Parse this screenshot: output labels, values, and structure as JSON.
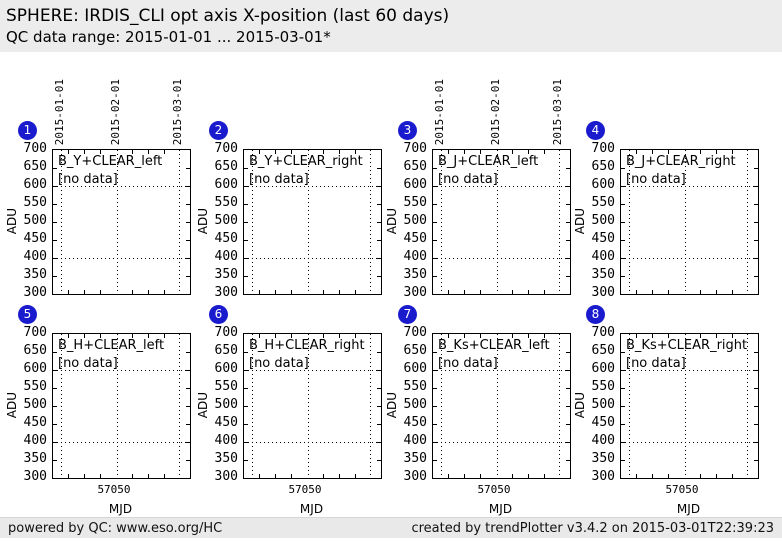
{
  "header": {
    "title": "SPHERE: IRDIS_CLI opt axis X-position (last 60 days)",
    "subtitle": "QC data range: 2015-01-01 ... 2015-03-01*"
  },
  "colors": {
    "badge": "#1b1bce",
    "header_bg": "#ececec",
    "footer_bg": "#e9e9e9"
  },
  "chart_data": {
    "type": "line",
    "grid": true,
    "ylabel": "ADU",
    "xlabel": "MJD",
    "ylim": [
      300,
      700
    ],
    "yticks": [
      "700",
      "650",
      "600",
      "550",
      "500",
      "450",
      "400",
      "350",
      "300"
    ],
    "xtick_label": "57050",
    "x_date_ticks": [
      "2015-01-01",
      "2015-02-01",
      "2015-03-01"
    ],
    "hgrid_levels": [
      600,
      400
    ],
    "panels": [
      {
        "num": "1",
        "title": "B_Y+CLEAR_left",
        "note": "[no data]",
        "values": [],
        "top_date_labels": true,
        "x_axis": false
      },
      {
        "num": "2",
        "title": "B_Y+CLEAR_right",
        "note": "[no data]",
        "values": [],
        "top_date_labels": false,
        "x_axis": false
      },
      {
        "num": "3",
        "title": "B_J+CLEAR_left",
        "note": "[no data]",
        "values": [],
        "top_date_labels": true,
        "x_axis": false
      },
      {
        "num": "4",
        "title": "B_J+CLEAR_right",
        "note": "[no data]",
        "values": [],
        "top_date_labels": false,
        "x_axis": false
      },
      {
        "num": "5",
        "title": "B_H+CLEAR_left",
        "note": "[no data]",
        "values": [],
        "top_date_labels": false,
        "x_axis": true
      },
      {
        "num": "6",
        "title": "B_H+CLEAR_right",
        "note": "[no data]",
        "values": [],
        "top_date_labels": false,
        "x_axis": true
      },
      {
        "num": "7",
        "title": "B_Ks+CLEAR_left",
        "note": "[no data]",
        "values": [],
        "top_date_labels": false,
        "x_axis": true
      },
      {
        "num": "8",
        "title": "B_Ks+CLEAR_right",
        "note": "[no data]",
        "values": [],
        "top_date_labels": false,
        "x_axis": true
      }
    ]
  },
  "footer": {
    "left": "powered by QC: www.eso.org/HC",
    "right": "created by trendPlotter v3.4.2 on 2015-03-01T22:39:23"
  }
}
